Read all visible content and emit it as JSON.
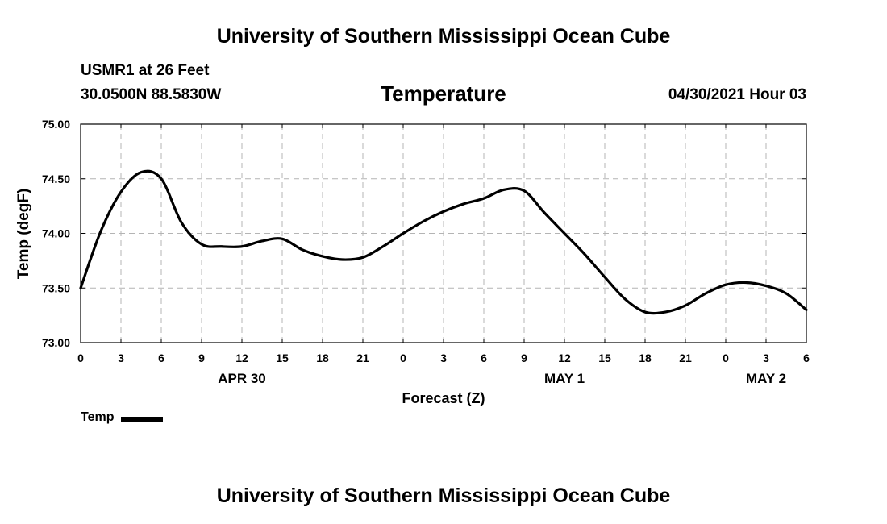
{
  "header_title": "University of Southern Mississippi Ocean Cube",
  "footer_title": "University of Southern Mississippi Ocean Cube",
  "station": {
    "name": "USMR1 at 26 Feet",
    "coordinates": "30.0500N  88.5830W"
  },
  "date_label": "04/30/2021 Hour 03",
  "chart_data": {
    "type": "line",
    "title": "Temperature",
    "xlabel": "Forecast (Z)",
    "ylabel": "Temp (degF)",
    "xlim": [
      0,
      54
    ],
    "ylim": [
      73.0,
      75.0
    ],
    "grid": true,
    "legend_placement": "bottom-left",
    "x_ticks": [
      0,
      3,
      6,
      9,
      12,
      15,
      18,
      21,
      24,
      27,
      30,
      33,
      36,
      39,
      42,
      45,
      48,
      51,
      54
    ],
    "x_tick_labels": [
      "0",
      "3",
      "6",
      "9",
      "12",
      "15",
      "18",
      "21",
      "0",
      "3",
      "6",
      "9",
      "12",
      "15",
      "18",
      "21",
      "0",
      "3",
      "6"
    ],
    "y_ticks": [
      73.0,
      73.5,
      74.0,
      74.5,
      75.0
    ],
    "y_tick_labels": [
      "73.00",
      "73.50",
      "74.00",
      "74.50",
      "75.00"
    ],
    "date_labels": [
      {
        "x": 12,
        "label": "APR 30"
      },
      {
        "x": 36,
        "label": "MAY 1"
      },
      {
        "x": 51,
        "label": "MAY 2"
      }
    ],
    "series": [
      {
        "name": "Temp",
        "color": "#000000",
        "x": [
          0,
          1.5,
          3,
          4.5,
          6,
          7.5,
          9,
          10.5,
          12,
          13.5,
          15,
          16.5,
          18,
          19.5,
          21,
          22.5,
          24,
          25.5,
          27,
          28.5,
          30,
          31.5,
          33,
          34.5,
          36,
          37.5,
          39,
          40.5,
          42,
          43.5,
          45,
          46.5,
          48,
          49.5,
          51,
          52.5,
          54
        ],
        "values": [
          73.5,
          74.02,
          74.38,
          74.56,
          74.5,
          74.1,
          73.9,
          73.88,
          73.88,
          73.93,
          73.95,
          73.85,
          73.79,
          73.76,
          73.78,
          73.88,
          74.0,
          74.11,
          74.2,
          74.27,
          74.32,
          74.4,
          74.39,
          74.19,
          74.0,
          73.81,
          73.6,
          73.4,
          73.28,
          73.28,
          73.34,
          73.45,
          73.53,
          73.55,
          73.52,
          73.45,
          73.3
        ]
      }
    ]
  }
}
